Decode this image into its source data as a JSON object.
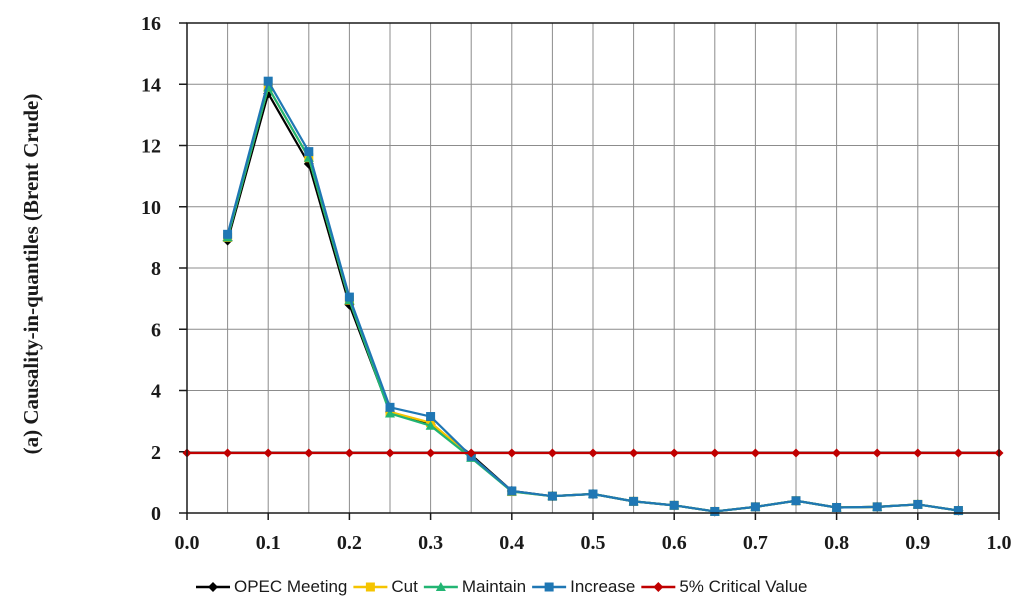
{
  "chart_data": {
    "type": "line",
    "ylabel": "(a) Causality-in-quantiles (Brent Crude)",
    "xlabel": "",
    "xlim": [
      0.0,
      1.0
    ],
    "ylim": [
      0,
      16
    ],
    "x_ticks": [
      "0.0",
      "0.1",
      "0.2",
      "0.3",
      "0.4",
      "0.5",
      "0.6",
      "0.7",
      "0.8",
      "0.9",
      "1.0"
    ],
    "y_ticks": [
      "0",
      "2",
      "4",
      "6",
      "8",
      "10",
      "12",
      "14",
      "16"
    ],
    "grid": true,
    "legend_position": "bottom",
    "x": [
      0.05,
      0.1,
      0.15,
      0.2,
      0.25,
      0.3,
      0.35,
      0.4,
      0.45,
      0.5,
      0.55,
      0.6,
      0.65,
      0.7,
      0.75,
      0.8,
      0.85,
      0.9,
      0.95
    ],
    "series": [
      {
        "name": "OPEC Meeting",
        "color": "#000000",
        "marker": "diamond",
        "values": [
          8.9,
          13.7,
          11.4,
          6.8,
          3.3,
          2.9,
          1.9,
          0.72,
          0.55,
          0.62,
          0.38,
          0.25,
          0.05,
          0.2,
          0.4,
          0.18,
          0.2,
          0.28,
          0.08
        ]
      },
      {
        "name": "Cut",
        "color": "#f5c400",
        "marker": "square",
        "values": [
          9.0,
          13.9,
          11.6,
          6.95,
          3.3,
          2.95,
          1.85,
          0.7,
          0.55,
          0.62,
          0.38,
          0.25,
          0.05,
          0.2,
          0.4,
          0.18,
          0.2,
          0.28,
          0.08
        ]
      },
      {
        "name": "Maintain",
        "color": "#22b573",
        "marker": "triangle",
        "values": [
          9.0,
          13.9,
          11.6,
          6.95,
          3.25,
          2.85,
          1.8,
          0.7,
          0.55,
          0.62,
          0.38,
          0.25,
          0.05,
          0.2,
          0.4,
          0.18,
          0.2,
          0.28,
          0.08
        ]
      },
      {
        "name": "Increase",
        "color": "#1f77b4",
        "marker": "square",
        "values": [
          9.1,
          14.1,
          11.8,
          7.05,
          3.45,
          3.15,
          1.85,
          0.72,
          0.55,
          0.62,
          0.38,
          0.25,
          0.05,
          0.2,
          0.4,
          0.18,
          0.2,
          0.28,
          0.08
        ]
      }
    ],
    "critical": {
      "name": "5% Critical Value",
      "color": "#c00000",
      "marker": "diamond",
      "value": 1.96,
      "x": [
        0.0,
        0.05,
        0.1,
        0.15,
        0.2,
        0.25,
        0.3,
        0.35,
        0.4,
        0.45,
        0.5,
        0.55,
        0.6,
        0.65,
        0.7,
        0.75,
        0.8,
        0.85,
        0.9,
        0.95,
        1.0
      ]
    }
  }
}
